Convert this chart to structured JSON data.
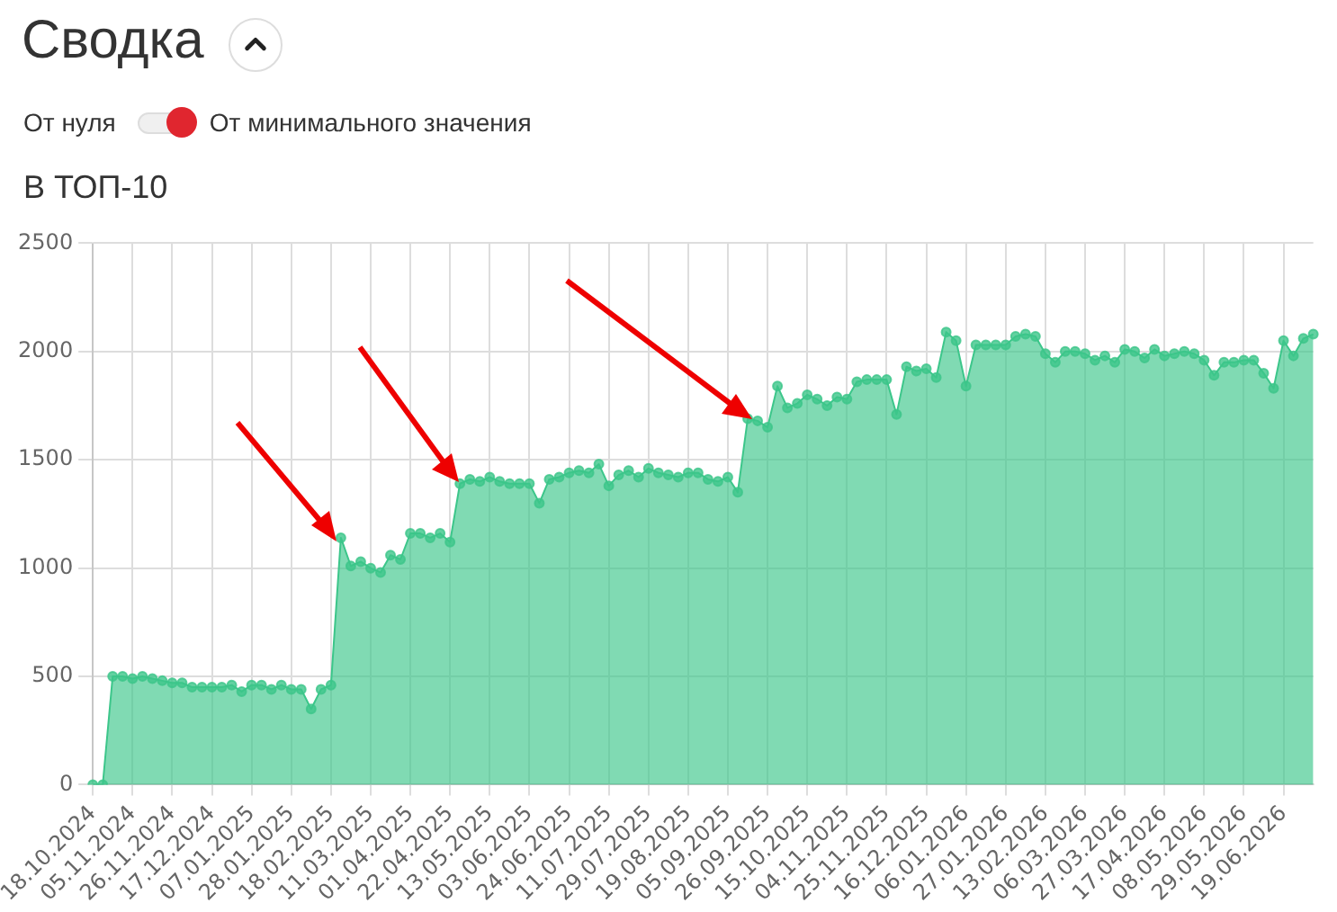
{
  "chart_data": {
    "type": "area",
    "title": "Сводка",
    "subtitle": "В ТОП-10",
    "annotations": [
      "От нуля",
      "От минимального значения"
    ],
    "categories": [
      "18.10.2024",
      null,
      null,
      null,
      "05.11.2024",
      null,
      null,
      null,
      "26.11.2024",
      null,
      null,
      null,
      "17.12.2024",
      null,
      null,
      null,
      "07.01.2025",
      null,
      null,
      null,
      "28.01.2025",
      null,
      null,
      null,
      "18.02.2025",
      null,
      null,
      null,
      "11.03.2025",
      null,
      null,
      null,
      "01.04.2025",
      null,
      null,
      null,
      "22.04.2025",
      null,
      null,
      null,
      "13.05.2025",
      null,
      null,
      null,
      "03.06.2025",
      null,
      null,
      null,
      "24.06.2025",
      null,
      null,
      null,
      "11.07.2025",
      null,
      null,
      null,
      "29.07.2025",
      null,
      null,
      null,
      "19.08.2025",
      null,
      null,
      null,
      "05.09.2025",
      null,
      null,
      null,
      "26.09.2025",
      null,
      null,
      null,
      "15.10.2025",
      null,
      null,
      null,
      "04.11.2025",
      null,
      null,
      null,
      "25.11.2025",
      null,
      null,
      null,
      "16.12.2025",
      null,
      null,
      null,
      "06.01.2026",
      null,
      null,
      null,
      "27.01.2026",
      null,
      null,
      null,
      "13.02.2026",
      null,
      null,
      null,
      "06.03.2026",
      null,
      null,
      null,
      "27.03.2026",
      null,
      null,
      null,
      "17.04.2026",
      null,
      null,
      null,
      "08.05.2026",
      null,
      null,
      null,
      "29.05.2026",
      null,
      null,
      null,
      "19.06.2026",
      null,
      null,
      null
    ],
    "series": [
      {
        "color": "#3cc68a",
        "values": [
          0,
          0,
          500,
          500,
          490,
          500,
          490,
          480,
          470,
          470,
          450,
          450,
          450,
          450,
          460,
          430,
          460,
          460,
          440,
          460,
          440,
          440,
          350,
          440,
          460,
          1140,
          1010,
          1030,
          1000,
          980,
          1060,
          1040,
          1160,
          1160,
          1140,
          1160,
          1120,
          1390,
          1410,
          1400,
          1420,
          1400,
          1390,
          1390,
          1390,
          1300,
          1410,
          1420,
          1440,
          1450,
          1440,
          1480,
          1380,
          1430,
          1450,
          1420,
          1460,
          1440,
          1430,
          1420,
          1440,
          1440,
          1410,
          1400,
          1420,
          1350,
          1690,
          1680,
          1650,
          1840,
          1740,
          1760,
          1800,
          1780,
          1750,
          1790,
          1780,
          1860,
          1870,
          1870,
          1870,
          1710,
          1930,
          1910,
          1920,
          1880,
          2090,
          2050,
          1840,
          2030,
          2030,
          2030,
          2030,
          2070,
          2080,
          2070,
          1990,
          1950,
          2000,
          2000,
          1990,
          1960,
          1980,
          1950,
          2010,
          2000,
          1970,
          2010,
          1980,
          1990,
          2000,
          1990,
          1960,
          1890,
          1950,
          1950,
          1960,
          1960,
          1900,
          1830,
          2050,
          1980,
          2060,
          2080
        ]
      }
    ],
    "ylim": [
      0,
      2500
    ],
    "yticks": [
      0,
      500,
      1000,
      1500,
      2000,
      2500
    ],
    "grid": true,
    "legend": false,
    "marker": "circle"
  }
}
